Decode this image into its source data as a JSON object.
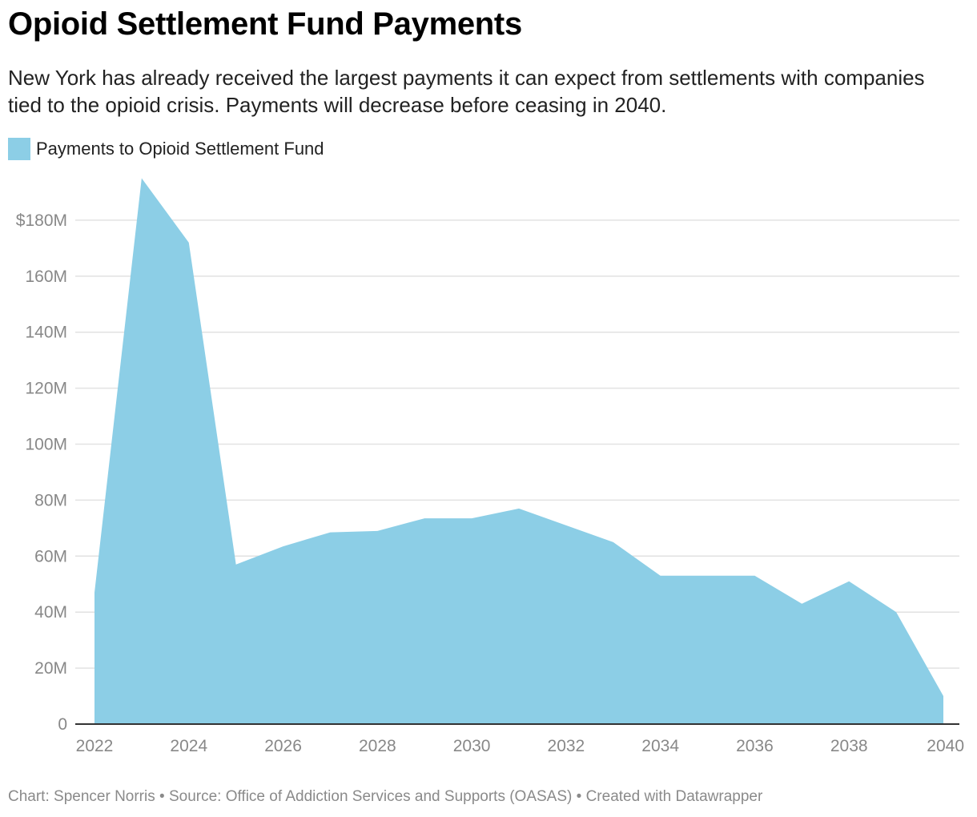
{
  "colors": {
    "area": "#8ccee6",
    "gridline": "#e2e2e2",
    "baseline": "#333333",
    "tick_text": "#888888"
  },
  "footer": {
    "chart_credit": "Chart: Spencer Norris",
    "source": "Source: Office of Addiction Services and Supports (OASAS)",
    "tool": "Created with Datawrapper",
    "separator": " • "
  },
  "chart_data": {
    "type": "area",
    "title": "Opioid Settlement Fund Payments",
    "subtitle": "New York has already received the largest payments it can expect from settlements with companies tied to the opioid crisis. Payments will decrease before ceasing in 2040.",
    "xlabel": "",
    "ylabel": "",
    "legend": "top-left",
    "grid": true,
    "ylim": [
      0,
      195
    ],
    "xlim": [
      2022,
      2040
    ],
    "y_ticks": [
      {
        "value": 0,
        "label": "0"
      },
      {
        "value": 20,
        "label": "20M"
      },
      {
        "value": 40,
        "label": "40M"
      },
      {
        "value": 60,
        "label": "60M"
      },
      {
        "value": 80,
        "label": "80M"
      },
      {
        "value": 100,
        "label": "100M"
      },
      {
        "value": 120,
        "label": "120M"
      },
      {
        "value": 140,
        "label": "140M"
      },
      {
        "value": 160,
        "label": "160M"
      },
      {
        "value": 180,
        "label": "$180M"
      }
    ],
    "x_ticks": [
      {
        "value": 2022,
        "label": "2022"
      },
      {
        "value": 2024,
        "label": "2024"
      },
      {
        "value": 2026,
        "label": "2026"
      },
      {
        "value": 2028,
        "label": "2028"
      },
      {
        "value": 2030,
        "label": "2030"
      },
      {
        "value": 2032,
        "label": "2032"
      },
      {
        "value": 2034,
        "label": "2034"
      },
      {
        "value": 2036,
        "label": "2036"
      },
      {
        "value": 2038,
        "label": "2038"
      },
      {
        "value": 2040,
        "label": "2040"
      }
    ],
    "series": [
      {
        "name": "Payments to Opioid Settlement Fund",
        "unit": "millions USD",
        "x": [
          2022,
          2023,
          2024,
          2025,
          2026,
          2027,
          2028,
          2029,
          2030,
          2031,
          2032,
          2033,
          2034,
          2035,
          2036,
          2037,
          2038,
          2039,
          2040
        ],
        "values": [
          47,
          195,
          172,
          57,
          63.5,
          68.5,
          69,
          73.5,
          73.5,
          77,
          71,
          65,
          53,
          53,
          53,
          43,
          51,
          40,
          10
        ]
      }
    ]
  }
}
